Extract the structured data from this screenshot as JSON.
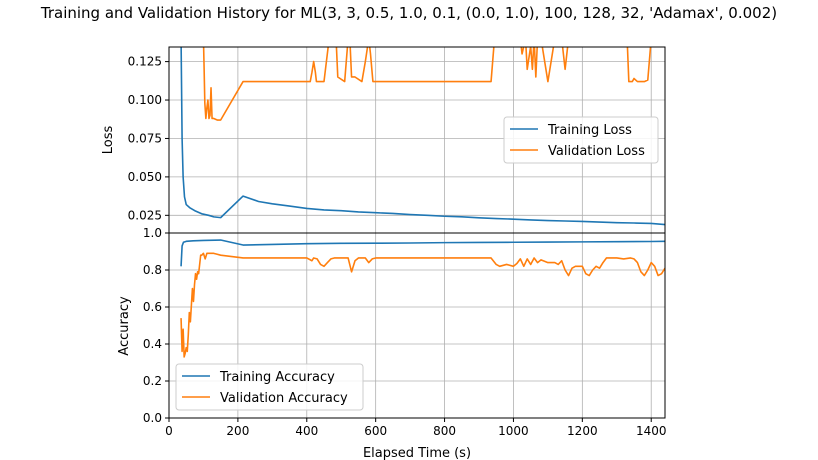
{
  "chart_data": [
    {
      "type": "line",
      "title": "Training and Validation History for ML(3, 3, 0.5, 1.0, 0.1, (0.0, 1.0), 100, 128, 32, 'Adamax', 0.002)",
      "xlabel": "",
      "ylabel": "Loss",
      "xlim": [
        0,
        1440
      ],
      "ylim": [
        0.0135,
        0.1345
      ],
      "yticks": [
        0.025,
        0.05,
        0.075,
        0.1,
        0.125
      ],
      "ytick_labels": [
        "0.025",
        "0.050",
        "0.075",
        "0.100",
        "0.125"
      ],
      "grid": true,
      "legend": "center-right",
      "series": [
        {
          "name": "Training Loss",
          "color": "#1f77b4",
          "x": [
            35,
            38,
            41,
            45,
            50,
            60,
            75,
            95,
            115,
            130,
            150,
            215,
            260,
            300,
            350,
            400,
            450,
            500,
            550,
            600,
            650,
            700,
            750,
            800,
            850,
            900,
            950,
            1000,
            1050,
            1100,
            1150,
            1200,
            1250,
            1300,
            1350,
            1400,
            1440
          ],
          "y": [
            0.14,
            0.075,
            0.05,
            0.037,
            0.032,
            0.03,
            0.028,
            0.026,
            0.025,
            0.024,
            0.0235,
            0.0375,
            0.034,
            0.0325,
            0.031,
            0.0295,
            0.0285,
            0.028,
            0.0272,
            0.0267,
            0.0262,
            0.0255,
            0.025,
            0.0244,
            0.024,
            0.0234,
            0.0229,
            0.0225,
            0.022,
            0.0216,
            0.0213,
            0.021,
            0.0206,
            0.0202,
            0.02,
            0.0197,
            0.019
          ]
        },
        {
          "name": "Validation Loss",
          "color": "#ff7f0e",
          "x": [
            100,
            102,
            104,
            107,
            110,
            113,
            116,
            119,
            122,
            125,
            130,
            140,
            150,
            215,
            250,
            300,
            350,
            380,
            410,
            415,
            420,
            425,
            428,
            440,
            450,
            465,
            475,
            480,
            485,
            490,
            510,
            520,
            525,
            530,
            540,
            560,
            570,
            580,
            585,
            592,
            600,
            650,
            700,
            750,
            800,
            850,
            900,
            935,
            945,
            950,
            1000,
            1020,
            1025,
            1035,
            1040,
            1050,
            1055,
            1060,
            1065,
            1070,
            1080,
            1100,
            1120,
            1140,
            1150,
            1160,
            1200,
            1250,
            1300,
            1330,
            1335,
            1345,
            1350,
            1360,
            1370,
            1380,
            1390,
            1400,
            1440
          ],
          "y": [
            0.14,
            0.12,
            0.098,
            0.088,
            0.095,
            0.1,
            0.088,
            0.09,
            0.108,
            0.088,
            0.088,
            0.087,
            0.087,
            0.112,
            0.112,
            0.112,
            0.112,
            0.112,
            0.112,
            0.118,
            0.125,
            0.118,
            0.112,
            0.112,
            0.112,
            0.14,
            0.14,
            0.14,
            0.14,
            0.115,
            0.112,
            0.14,
            0.14,
            0.115,
            0.115,
            0.112,
            0.125,
            0.14,
            0.13,
            0.112,
            0.112,
            0.112,
            0.112,
            0.112,
            0.112,
            0.112,
            0.112,
            0.112,
            0.14,
            0.14,
            0.14,
            0.14,
            0.13,
            0.14,
            0.12,
            0.135,
            0.12,
            0.14,
            0.115,
            0.14,
            0.14,
            0.112,
            0.14,
            0.14,
            0.12,
            0.14,
            0.14,
            0.14,
            0.14,
            0.14,
            0.112,
            0.112,
            0.114,
            0.112,
            0.112,
            0.112,
            0.113,
            0.14,
            0.14
          ]
        }
      ]
    },
    {
      "type": "line",
      "xlabel": "Elapsed Time (s)",
      "ylabel": "Accuracy",
      "xlim": [
        0,
        1440
      ],
      "ylim": [
        0,
        1
      ],
      "xticks": [
        0,
        200,
        400,
        600,
        800,
        1000,
        1200,
        1400
      ],
      "xtick_labels": [
        "0",
        "200",
        "400",
        "600",
        "800",
        "1000",
        "1200",
        "1400"
      ],
      "yticks": [
        0,
        0.2,
        0.4,
        0.6,
        0.8,
        1.0
      ],
      "ytick_labels": [
        "0.0",
        "0.2",
        "0.4",
        "0.6",
        "0.8",
        "1.0"
      ],
      "grid": true,
      "legend": "lower-left",
      "series": [
        {
          "name": "Training Accuracy",
          "color": "#1f77b4",
          "x": [
            35,
            38,
            42,
            50,
            70,
            100,
            150,
            215,
            300,
            400,
            500,
            600,
            700,
            800,
            900,
            1000,
            1100,
            1200,
            1300,
            1400,
            1440
          ],
          "y": [
            0.82,
            0.93,
            0.95,
            0.955,
            0.958,
            0.96,
            0.962,
            0.935,
            0.938,
            0.942,
            0.944,
            0.945,
            0.946,
            0.948,
            0.949,
            0.95,
            0.951,
            0.952,
            0.953,
            0.954,
            0.955
          ]
        },
        {
          "name": "Validation Accuracy",
          "color": "#ff7f0e",
          "x": [
            35,
            38,
            41,
            44,
            47,
            50,
            53,
            56,
            59,
            62,
            65,
            68,
            71,
            74,
            77,
            80,
            83,
            86,
            89,
            92,
            95,
            100,
            105,
            110,
            115,
            120,
            125,
            130,
            140,
            150,
            215,
            300,
            400,
            415,
            420,
            430,
            440,
            450,
            460,
            470,
            480,
            500,
            520,
            530,
            540,
            550,
            570,
            580,
            590,
            600,
            700,
            800,
            900,
            935,
            950,
            960,
            980,
            1000,
            1010,
            1020,
            1030,
            1040,
            1050,
            1060,
            1070,
            1080,
            1100,
            1120,
            1130,
            1140,
            1150,
            1160,
            1170,
            1180,
            1200,
            1210,
            1220,
            1230,
            1240,
            1250,
            1260,
            1270,
            1300,
            1320,
            1340,
            1350,
            1360,
            1370,
            1380,
            1390,
            1400,
            1410,
            1420,
            1430,
            1440
          ],
          "y": [
            0.54,
            0.36,
            0.48,
            0.33,
            0.35,
            0.38,
            0.36,
            0.45,
            0.57,
            0.52,
            0.61,
            0.7,
            0.63,
            0.72,
            0.78,
            0.75,
            0.79,
            0.78,
            0.83,
            0.88,
            0.88,
            0.89,
            0.86,
            0.89,
            0.89,
            0.89,
            0.89,
            0.89,
            0.885,
            0.88,
            0.865,
            0.865,
            0.865,
            0.85,
            0.865,
            0.86,
            0.83,
            0.82,
            0.84,
            0.86,
            0.865,
            0.865,
            0.865,
            0.79,
            0.85,
            0.865,
            0.865,
            0.84,
            0.86,
            0.865,
            0.865,
            0.865,
            0.865,
            0.865,
            0.83,
            0.82,
            0.83,
            0.82,
            0.835,
            0.86,
            0.82,
            0.86,
            0.83,
            0.865,
            0.84,
            0.855,
            0.84,
            0.84,
            0.83,
            0.85,
            0.8,
            0.77,
            0.81,
            0.82,
            0.82,
            0.78,
            0.77,
            0.8,
            0.82,
            0.81,
            0.84,
            0.865,
            0.865,
            0.86,
            0.865,
            0.86,
            0.84,
            0.79,
            0.77,
            0.8,
            0.84,
            0.82,
            0.77,
            0.78,
            0.81
          ]
        }
      ]
    }
  ]
}
